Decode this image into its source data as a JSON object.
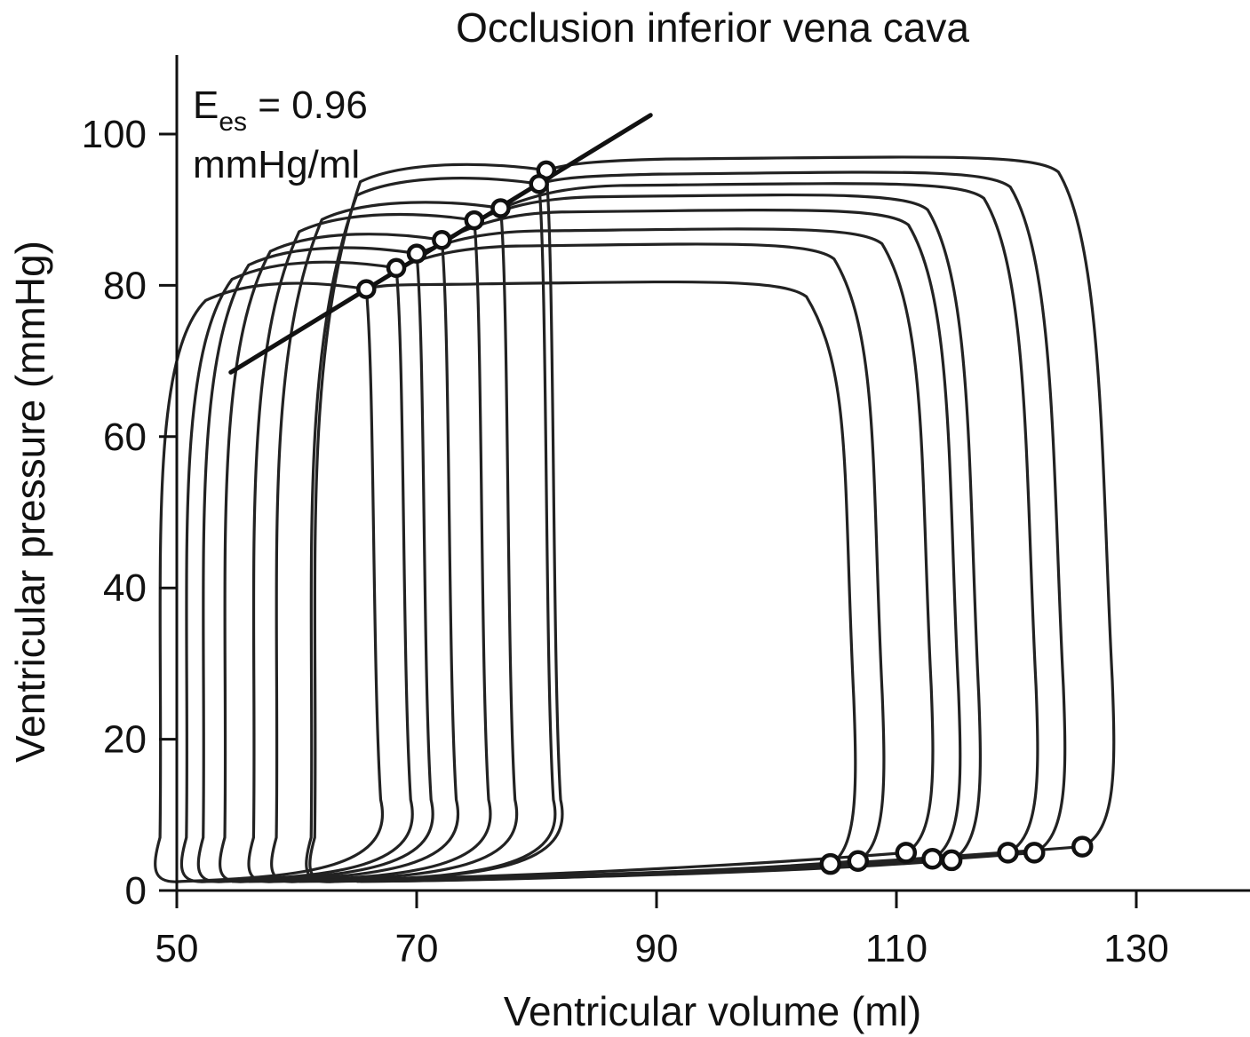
{
  "chart_data": {
    "type": "line",
    "title": "Occlusion inferior vena cava",
    "xlabel": "Ventricular volume (ml)",
    "ylabel": "Ventricular pressure (mmHg)",
    "xlim": [
      50,
      140
    ],
    "ylim": [
      0,
      110
    ],
    "xticks": [
      "50",
      "70",
      "90",
      "110",
      "130"
    ],
    "yticks": [
      "0",
      "20",
      "40",
      "60",
      "80",
      "100"
    ],
    "grid": false,
    "annotation": {
      "symbol": "E",
      "subscript": "es",
      "value_text": " = 0.96",
      "unit": "mmHg/ml"
    },
    "espvr_line": {
      "x": [
        54.5,
        89.5
      ],
      "y": [
        68.5,
        102.5
      ],
      "slope": 0.96
    },
    "loops": [
      {
        "ed_volume": 125.5,
        "ed_pressure": 5.8,
        "es_volume": 80.8,
        "es_pressure": 95.2,
        "peak_pressure": 97
      },
      {
        "ed_volume": 121.5,
        "ed_pressure": 5.0,
        "es_volume": 80.2,
        "es_pressure": 93.4,
        "peak_pressure": 95
      },
      {
        "ed_volume": 119.3,
        "ed_pressure": 5.0,
        "es_volume": 77.0,
        "es_pressure": 90.2,
        "peak_pressure": 93.5
      },
      {
        "ed_volume": 114.6,
        "ed_pressure": 4.0,
        "es_volume": 74.8,
        "es_pressure": 88.6,
        "peak_pressure": 92
      },
      {
        "ed_volume": 113.0,
        "ed_pressure": 4.2,
        "es_volume": 72.1,
        "es_pressure": 86.0,
        "peak_pressure": 90
      },
      {
        "ed_volume": 110.8,
        "ed_pressure": 5.0,
        "es_volume": 70.0,
        "es_pressure": 84.2,
        "peak_pressure": 87.5
      },
      {
        "ed_volume": 106.8,
        "ed_pressure": 3.9,
        "es_volume": 68.3,
        "es_pressure": 82.3,
        "peak_pressure": 85.5
      },
      {
        "ed_volume": 104.5,
        "ed_pressure": 3.5,
        "es_volume": 65.8,
        "es_pressure": 79.5,
        "peak_pressure": 80.5
      }
    ]
  }
}
